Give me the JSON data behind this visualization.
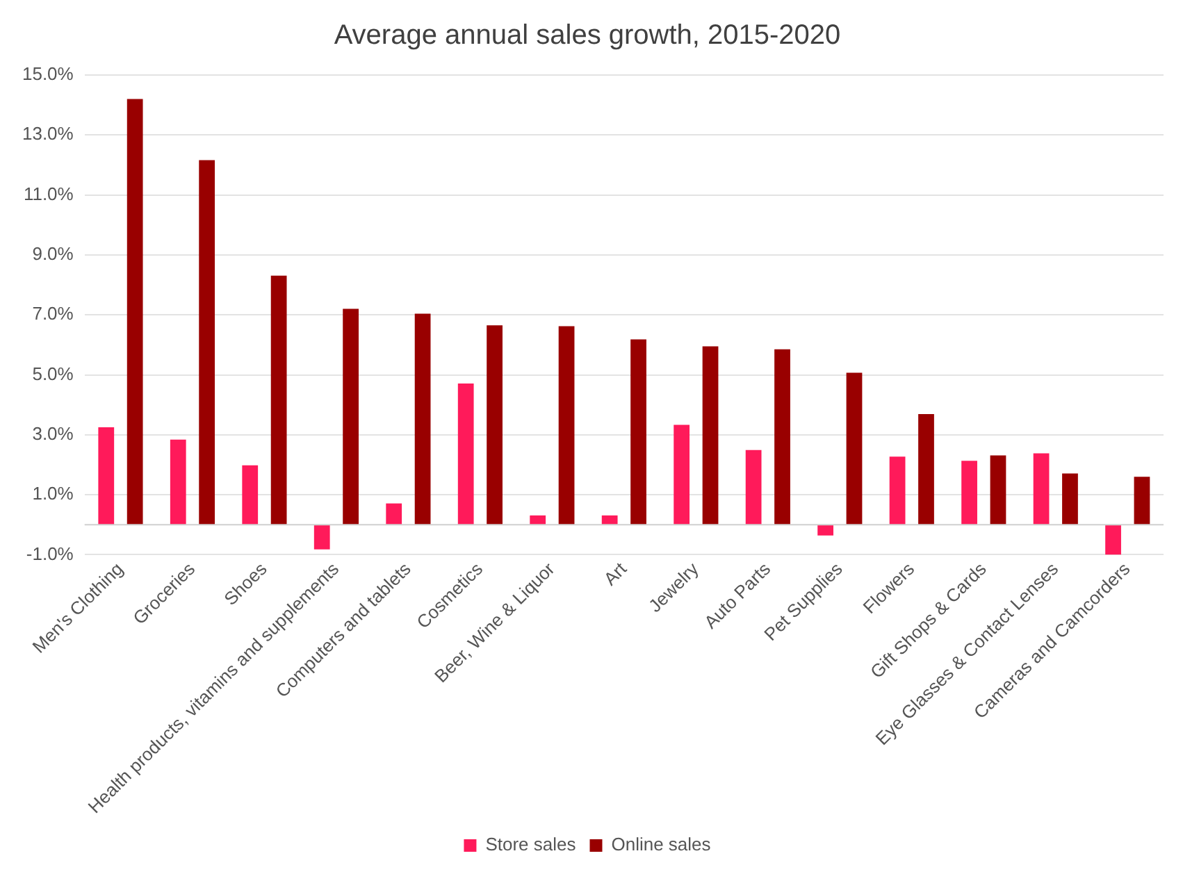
{
  "chart_data": {
    "type": "bar",
    "title": "Average annual sales growth, 2015-2020",
    "categories": [
      "Men's Clothing",
      "Groceries",
      "Shoes",
      "Health products, vitamins and supplements",
      "Computers and tablets",
      "Cosmetics",
      "Beer, Wine & Liquor",
      "Art",
      "Jewelry",
      "Auto Parts",
      "Pet Supplies",
      "Flowers",
      "Gift Shops & Cards",
      "Eye Glasses & Contact Lenses",
      "Cameras and Camcorders"
    ],
    "series": [
      {
        "name": "Store sales",
        "color": "#ff1a5a",
        "values": [
          3.25,
          2.84,
          1.98,
          -0.82,
          0.71,
          4.71,
          0.31,
          0.31,
          3.33,
          2.49,
          -0.36,
          2.27,
          2.13,
          2.38,
          -1.0
        ]
      },
      {
        "name": "Online sales",
        "color": "#990000",
        "values": [
          14.2,
          12.16,
          8.31,
          7.2,
          7.04,
          6.65,
          6.62,
          6.18,
          5.95,
          5.85,
          5.07,
          3.69,
          2.31,
          1.71,
          1.6
        ]
      }
    ],
    "ylim": [
      -1,
      15
    ],
    "yticks": [
      {
        "value": -1,
        "label": "-1.0%"
      },
      {
        "value": 1,
        "label": "1.0%"
      },
      {
        "value": 3,
        "label": "3.0%"
      },
      {
        "value": 5,
        "label": "5.0%"
      },
      {
        "value": 7,
        "label": "7.0%"
      },
      {
        "value": 9,
        "label": "9.0%"
      },
      {
        "value": 11,
        "label": "11.0%"
      },
      {
        "value": 13,
        "label": "13.0%"
      },
      {
        "value": 15,
        "label": "15.0%"
      }
    ],
    "grid": "y",
    "legend": "bottom"
  }
}
